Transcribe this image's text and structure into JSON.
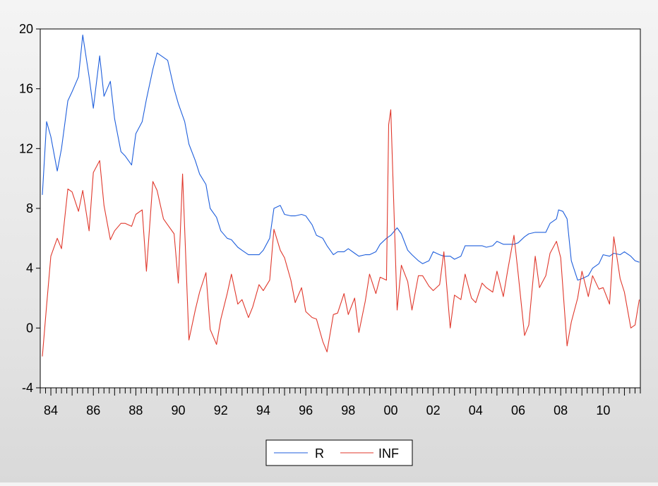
{
  "chart_data": {
    "type": "line",
    "title": "",
    "xlabel": "",
    "ylabel": "",
    "ylim": [
      -4,
      20
    ],
    "yticks": [
      -4,
      0,
      4,
      8,
      12,
      16,
      20
    ],
    "xlim": [
      1983.5,
      2011.75
    ],
    "xtick_labels": [
      {
        "year": 1984,
        "label": "84"
      },
      {
        "year": 1986,
        "label": "86"
      },
      {
        "year": 1988,
        "label": "88"
      },
      {
        "year": 1990,
        "label": "90"
      },
      {
        "year": 1992,
        "label": "92"
      },
      {
        "year": 1994,
        "label": "94"
      },
      {
        "year": 1996,
        "label": "96"
      },
      {
        "year": 1998,
        "label": "98"
      },
      {
        "year": 2000,
        "label": "00"
      },
      {
        "year": 2002,
        "label": "02"
      },
      {
        "year": 2004,
        "label": "04"
      },
      {
        "year": 2006,
        "label": "06"
      },
      {
        "year": 2008,
        "label": "08"
      },
      {
        "year": 2010,
        "label": "10"
      }
    ],
    "frequency": "quarterly",
    "grid": false,
    "legend_position": "bottom-center",
    "series": [
      {
        "name": "R",
        "color": "#1f5fdc",
        "points": [
          [
            1983.6,
            8.9
          ],
          [
            1983.8,
            13.8
          ],
          [
            1984.0,
            12.8
          ],
          [
            1984.3,
            10.5
          ],
          [
            1984.5,
            12.0
          ],
          [
            1984.8,
            15.2
          ],
          [
            1985.0,
            15.8
          ],
          [
            1985.3,
            16.8
          ],
          [
            1985.5,
            19.6
          ],
          [
            1985.8,
            16.8
          ],
          [
            1986.0,
            14.7
          ],
          [
            1986.3,
            18.2
          ],
          [
            1986.5,
            15.5
          ],
          [
            1986.8,
            16.5
          ],
          [
            1987.0,
            14.0
          ],
          [
            1987.3,
            11.8
          ],
          [
            1987.5,
            11.5
          ],
          [
            1987.8,
            10.9
          ],
          [
            1988.0,
            13.0
          ],
          [
            1988.3,
            13.8
          ],
          [
            1988.5,
            15.3
          ],
          [
            1988.8,
            17.3
          ],
          [
            1989.0,
            18.4
          ],
          [
            1989.3,
            18.1
          ],
          [
            1989.5,
            17.9
          ],
          [
            1989.8,
            16.0
          ],
          [
            1990.0,
            15.0
          ],
          [
            1990.3,
            13.8
          ],
          [
            1990.5,
            12.3
          ],
          [
            1990.8,
            11.2
          ],
          [
            1991.0,
            10.3
          ],
          [
            1991.3,
            9.6
          ],
          [
            1991.5,
            8.0
          ],
          [
            1991.8,
            7.4
          ],
          [
            1992.0,
            6.5
          ],
          [
            1992.3,
            6.0
          ],
          [
            1992.5,
            5.9
          ],
          [
            1992.8,
            5.4
          ],
          [
            1993.0,
            5.2
          ],
          [
            1993.3,
            4.9
          ],
          [
            1993.5,
            4.9
          ],
          [
            1993.8,
            4.9
          ],
          [
            1994.0,
            5.2
          ],
          [
            1994.3,
            6.0
          ],
          [
            1994.5,
            8.0
          ],
          [
            1994.8,
            8.2
          ],
          [
            1995.0,
            7.6
          ],
          [
            1995.3,
            7.5
          ],
          [
            1995.5,
            7.5
          ],
          [
            1995.8,
            7.6
          ],
          [
            1996.0,
            7.5
          ],
          [
            1996.3,
            6.9
          ],
          [
            1996.5,
            6.2
          ],
          [
            1996.8,
            6.0
          ],
          [
            1997.0,
            5.5
          ],
          [
            1997.3,
            4.9
          ],
          [
            1997.5,
            5.1
          ],
          [
            1997.8,
            5.1
          ],
          [
            1998.0,
            5.3
          ],
          [
            1998.3,
            5.0
          ],
          [
            1998.5,
            4.8
          ],
          [
            1998.8,
            4.9
          ],
          [
            1999.0,
            4.9
          ],
          [
            1999.3,
            5.1
          ],
          [
            1999.5,
            5.6
          ],
          [
            1999.8,
            6.0
          ],
          [
            2000.0,
            6.2
          ],
          [
            2000.3,
            6.7
          ],
          [
            2000.5,
            6.3
          ],
          [
            2000.8,
            5.2
          ],
          [
            2001.0,
            4.9
          ],
          [
            2001.3,
            4.5
          ],
          [
            2001.5,
            4.3
          ],
          [
            2001.8,
            4.5
          ],
          [
            2002.0,
            5.1
          ],
          [
            2002.3,
            4.9
          ],
          [
            2002.5,
            4.8
          ],
          [
            2002.8,
            4.8
          ],
          [
            2003.0,
            4.6
          ],
          [
            2003.3,
            4.8
          ],
          [
            2003.5,
            5.5
          ],
          [
            2003.8,
            5.5
          ],
          [
            2004.0,
            5.5
          ],
          [
            2004.3,
            5.5
          ],
          [
            2004.5,
            5.4
          ],
          [
            2004.8,
            5.5
          ],
          [
            2005.0,
            5.8
          ],
          [
            2005.3,
            5.6
          ],
          [
            2005.5,
            5.6
          ],
          [
            2005.8,
            5.6
          ],
          [
            2006.0,
            5.7
          ],
          [
            2006.3,
            6.1
          ],
          [
            2006.5,
            6.3
          ],
          [
            2006.8,
            6.4
          ],
          [
            2007.0,
            6.4
          ],
          [
            2007.3,
            6.4
          ],
          [
            2007.5,
            7.0
          ],
          [
            2007.8,
            7.3
          ],
          [
            2007.9,
            7.9
          ],
          [
            2008.1,
            7.8
          ],
          [
            2008.3,
            7.3
          ],
          [
            2008.5,
            4.5
          ],
          [
            2008.8,
            3.2
          ],
          [
            2009.0,
            3.3
          ],
          [
            2009.3,
            3.5
          ],
          [
            2009.5,
            4.0
          ],
          [
            2009.8,
            4.3
          ],
          [
            2010.0,
            4.9
          ],
          [
            2010.3,
            4.8
          ],
          [
            2010.5,
            5.0
          ],
          [
            2010.8,
            4.9
          ],
          [
            2011.0,
            5.1
          ],
          [
            2011.3,
            4.8
          ],
          [
            2011.5,
            4.5
          ],
          [
            2011.7,
            4.4
          ]
        ]
      },
      {
        "name": "INF",
        "color": "#e0382c",
        "points": [
          [
            1983.6,
            -1.9
          ],
          [
            1983.8,
            1.5
          ],
          [
            1984.0,
            4.8
          ],
          [
            1984.3,
            6.0
          ],
          [
            1984.5,
            5.3
          ],
          [
            1984.8,
            9.3
          ],
          [
            1985.0,
            9.1
          ],
          [
            1985.3,
            7.8
          ],
          [
            1985.5,
            9.2
          ],
          [
            1985.8,
            6.5
          ],
          [
            1986.0,
            10.4
          ],
          [
            1986.3,
            11.2
          ],
          [
            1986.5,
            8.2
          ],
          [
            1986.8,
            5.9
          ],
          [
            1987.0,
            6.5
          ],
          [
            1987.3,
            7.0
          ],
          [
            1987.5,
            7.0
          ],
          [
            1987.8,
            6.8
          ],
          [
            1988.0,
            7.6
          ],
          [
            1988.3,
            7.9
          ],
          [
            1988.5,
            3.8
          ],
          [
            1988.8,
            9.8
          ],
          [
            1989.0,
            9.2
          ],
          [
            1989.3,
            7.3
          ],
          [
            1989.5,
            6.9
          ],
          [
            1989.8,
            6.3
          ],
          [
            1990.0,
            3.0
          ],
          [
            1990.2,
            10.3
          ],
          [
            1990.5,
            -0.8
          ],
          [
            1990.8,
            1.2
          ],
          [
            1991.0,
            2.4
          ],
          [
            1991.3,
            3.7
          ],
          [
            1991.5,
            -0.1
          ],
          [
            1991.8,
            -1.1
          ],
          [
            1992.0,
            0.6
          ],
          [
            1992.3,
            2.3
          ],
          [
            1992.5,
            3.6
          ],
          [
            1992.8,
            1.6
          ],
          [
            1993.0,
            1.9
          ],
          [
            1993.3,
            0.7
          ],
          [
            1993.5,
            1.4
          ],
          [
            1993.8,
            2.9
          ],
          [
            1994.0,
            2.5
          ],
          [
            1994.3,
            3.2
          ],
          [
            1994.5,
            6.6
          ],
          [
            1994.8,
            5.2
          ],
          [
            1995.0,
            4.7
          ],
          [
            1995.3,
            3.2
          ],
          [
            1995.5,
            1.7
          ],
          [
            1995.8,
            2.7
          ],
          [
            1996.0,
            1.1
          ],
          [
            1996.3,
            0.7
          ],
          [
            1996.5,
            0.6
          ],
          [
            1996.8,
            -0.9
          ],
          [
            1997.0,
            -1.6
          ],
          [
            1997.3,
            0.9
          ],
          [
            1997.5,
            1.0
          ],
          [
            1997.8,
            2.3
          ],
          [
            1998.0,
            0.9
          ],
          [
            1998.3,
            2.0
          ],
          [
            1998.5,
            -0.3
          ],
          [
            1998.8,
            1.8
          ],
          [
            1999.0,
            3.6
          ],
          [
            1999.3,
            2.3
          ],
          [
            1999.5,
            3.4
          ],
          [
            1999.8,
            3.2
          ],
          [
            1999.9,
            13.6
          ],
          [
            2000.0,
            14.6
          ],
          [
            2000.3,
            1.2
          ],
          [
            2000.5,
            4.2
          ],
          [
            2000.8,
            3.1
          ],
          [
            2001.0,
            1.2
          ],
          [
            2001.3,
            3.5
          ],
          [
            2001.5,
            3.5
          ],
          [
            2001.8,
            2.8
          ],
          [
            2002.0,
            2.5
          ],
          [
            2002.3,
            2.9
          ],
          [
            2002.5,
            5.1
          ],
          [
            2002.8,
            0.0
          ],
          [
            2003.0,
            2.2
          ],
          [
            2003.3,
            1.9
          ],
          [
            2003.5,
            3.6
          ],
          [
            2003.8,
            2.0
          ],
          [
            2004.0,
            1.7
          ],
          [
            2004.3,
            3.0
          ],
          [
            2004.5,
            2.7
          ],
          [
            2004.8,
            2.4
          ],
          [
            2005.0,
            3.8
          ],
          [
            2005.3,
            2.1
          ],
          [
            2005.5,
            3.8
          ],
          [
            2005.8,
            6.2
          ],
          [
            2006.0,
            3.6
          ],
          [
            2006.3,
            -0.5
          ],
          [
            2006.5,
            0.2
          ],
          [
            2006.8,
            4.8
          ],
          [
            2007.0,
            2.7
          ],
          [
            2007.3,
            3.5
          ],
          [
            2007.5,
            5.0
          ],
          [
            2007.8,
            5.8
          ],
          [
            2008.0,
            4.7
          ],
          [
            2008.3,
            -1.2
          ],
          [
            2008.5,
            0.4
          ],
          [
            2008.8,
            2.0
          ],
          [
            2009.0,
            3.8
          ],
          [
            2009.3,
            2.1
          ],
          [
            2009.5,
            3.5
          ],
          [
            2009.8,
            2.6
          ],
          [
            2010.0,
            2.7
          ],
          [
            2010.3,
            1.6
          ],
          [
            2010.5,
            6.1
          ],
          [
            2010.8,
            3.3
          ],
          [
            2011.0,
            2.4
          ],
          [
            2011.3,
            0.0
          ],
          [
            2011.5,
            0.2
          ],
          [
            2011.7,
            1.9
          ]
        ]
      }
    ]
  }
}
